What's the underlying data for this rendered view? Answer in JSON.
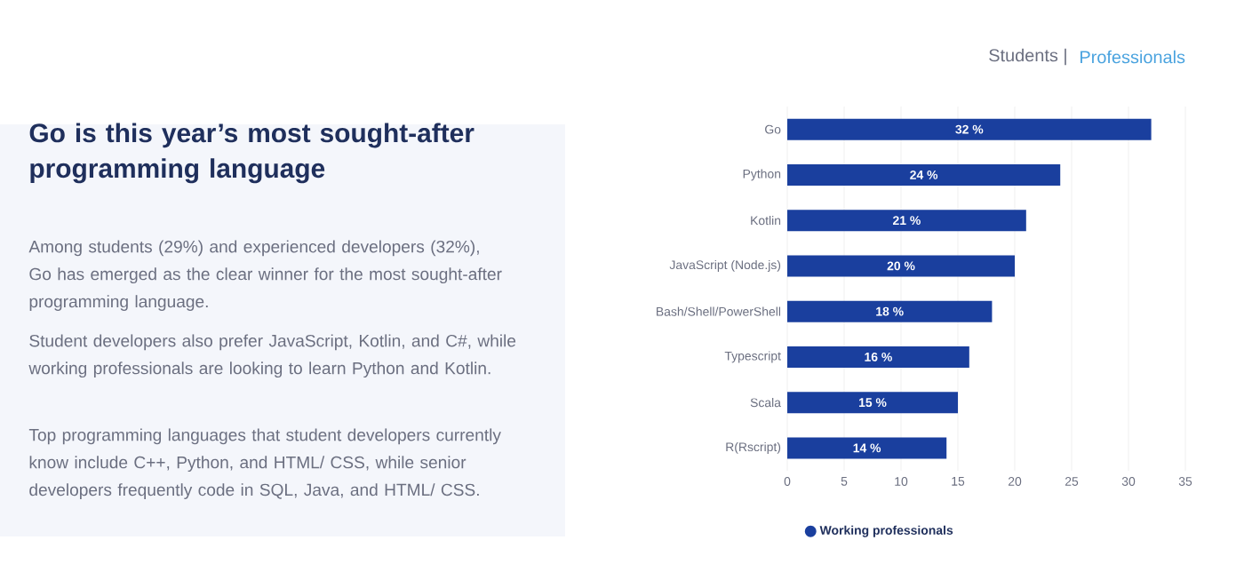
{
  "chart_data": {
    "type": "bar",
    "orientation": "horizontal",
    "title": "Go is this year’s most sought-after programming language",
    "annotations": [
      "Students |",
      "Professionals",
      "Among students (29%) and experienced developers (32%), Go has emerged as the clear winner for the most sought-after programming language.",
      "Student developers also prefer JavaScript, Kotlin, and C#, while working professionals are looking to learn Python and Kotlin.",
      "Top programming languages that student developers currently know include C++, Python, and HTML/ CSS, while senior developers frequently code in SQL, Java, and HTML/ CSS."
    ],
    "categories": [
      "Go",
      "Python",
      "Kotlin",
      "JavaScript (Node.js)",
      "Bash/Shell/PowerShell",
      "Typescript",
      "Scala",
      "R(Rscript)"
    ],
    "series": [
      {
        "name": "Working professionals",
        "color": "#1a3f9e",
        "values": [
          32,
          24,
          21,
          20,
          18,
          16,
          15,
          14
        ],
        "value_labels": [
          "32 %",
          "24 %",
          "21 %",
          "20 %",
          "18 %",
          "16 %",
          "15 %",
          "14 %"
        ]
      }
    ],
    "xlim": [
      0,
      35
    ],
    "xticks": [
      0,
      5,
      10,
      15,
      20,
      25,
      30,
      35
    ],
    "grid": "x",
    "legend": "bottom"
  }
}
